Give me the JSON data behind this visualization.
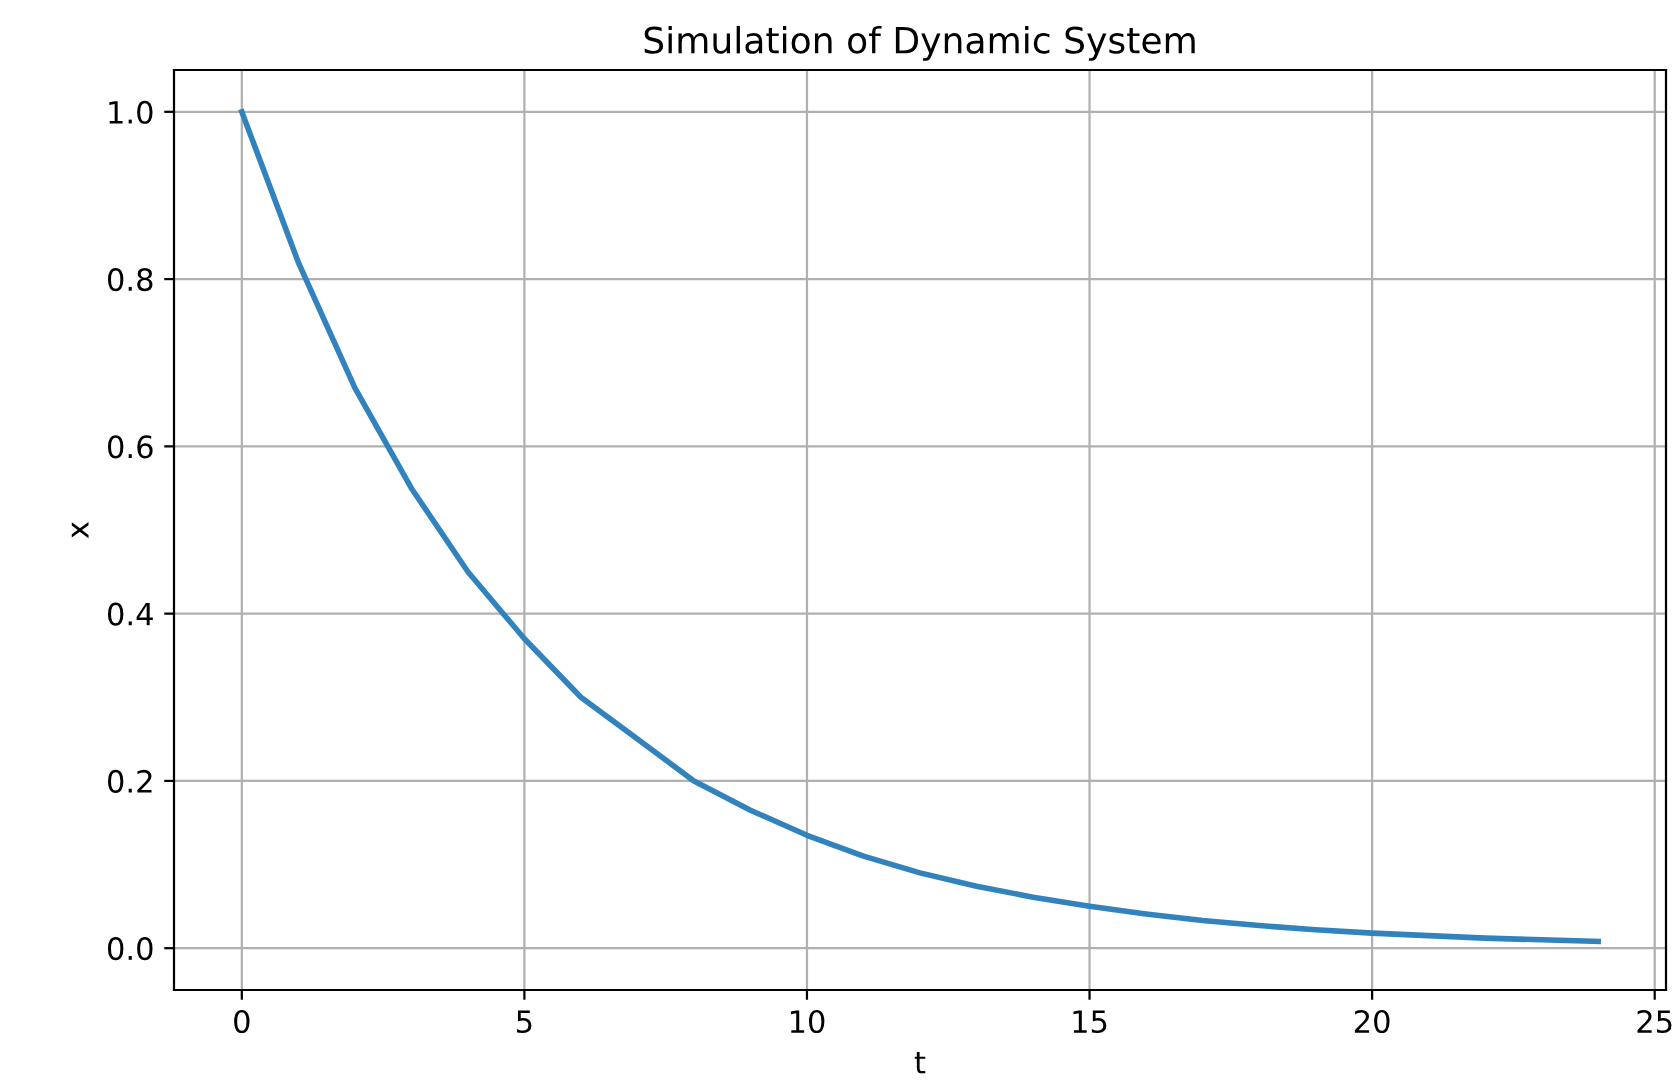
{
  "chart_data": {
    "type": "line",
    "title": "Simulation of Dynamic System",
    "xlabel": "t",
    "ylabel": "x",
    "x": [
      0,
      1,
      2,
      3,
      4,
      5,
      6,
      7,
      8,
      9,
      10,
      11,
      12,
      13,
      14,
      15,
      16,
      17,
      18,
      19,
      20,
      21,
      22,
      23,
      24
    ],
    "series": [
      {
        "color": "#3182bd",
        "values": [
          1.0,
          0.82,
          0.67,
          0.55,
          0.45,
          0.37,
          0.3,
          0.25,
          0.2,
          0.165,
          0.135,
          0.11,
          0.09,
          0.074,
          0.061,
          0.05,
          0.041,
          0.033,
          0.027,
          0.022,
          0.018,
          0.015,
          0.012,
          0.01,
          0.008
        ]
      }
    ],
    "xlim": [
      -1.2,
      25.2
    ],
    "ylim": [
      -0.05,
      1.05
    ],
    "xticks": [
      0,
      5,
      10,
      15,
      20,
      25
    ],
    "yticks": [
      {
        "value": 0,
        "label": "0.0"
      },
      {
        "value": 0.2,
        "label": "0.2"
      },
      {
        "value": 0.4,
        "label": "0.4"
      },
      {
        "value": 0.6,
        "label": "0.6"
      },
      {
        "value": 0.8,
        "label": "0.8"
      },
      {
        "value": 1,
        "label": "1.0"
      }
    ],
    "grid": true,
    "marker": "none",
    "line_style": "solid"
  }
}
